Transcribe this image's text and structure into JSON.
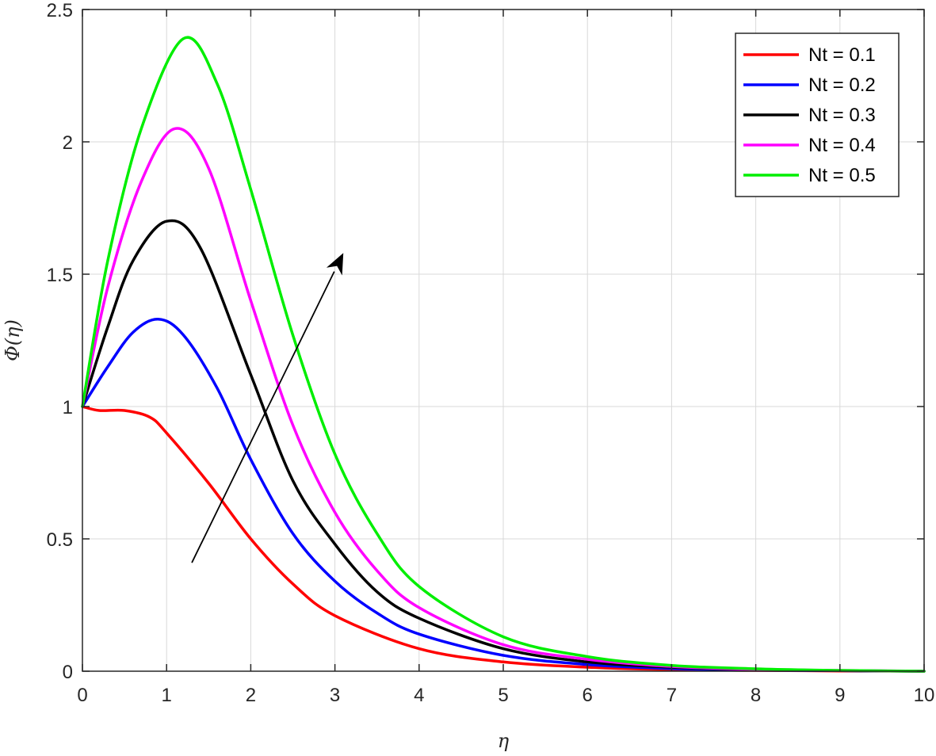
{
  "chart_data": {
    "type": "line",
    "xlabel": "η",
    "ylabel": "Φ(η)",
    "xlim": [
      0,
      10
    ],
    "ylim": [
      0,
      2.5
    ],
    "xticks": [
      "0",
      "1",
      "2",
      "3",
      "4",
      "5",
      "6",
      "7",
      "8",
      "9",
      "10"
    ],
    "yticks": [
      "0",
      "0.5",
      "1",
      "1.5",
      "2",
      "2.5"
    ],
    "grid": true,
    "legend_position": "top-right",
    "annotation": {
      "type": "arrow",
      "from": [
        1.3,
        0.41
      ],
      "to": [
        3.1,
        1.58
      ]
    },
    "series": [
      {
        "name": "Nt = 0.1",
        "color": "#ff0000",
        "x": [
          0,
          0.2,
          0.5,
          0.8,
          1.0,
          1.5,
          2.0,
          2.5,
          3.0,
          4.0,
          5.0,
          6.0,
          7.0,
          8.0,
          9.0,
          10.0
        ],
        "y": [
          1.0,
          0.985,
          0.985,
          0.96,
          0.9,
          0.71,
          0.5,
          0.33,
          0.21,
          0.085,
          0.035,
          0.015,
          0.006,
          0.003,
          0.001,
          0.0
        ]
      },
      {
        "name": "Nt = 0.2",
        "color": "#0000ff",
        "x": [
          0,
          0.3,
          0.6,
          0.9,
          1.2,
          1.6,
          2.0,
          2.5,
          3.0,
          3.5,
          4.0,
          5.0,
          6.0,
          7.0,
          8.0,
          9.0,
          10.0
        ],
        "y": [
          1.0,
          1.15,
          1.28,
          1.33,
          1.27,
          1.07,
          0.8,
          0.52,
          0.34,
          0.22,
          0.14,
          0.06,
          0.025,
          0.01,
          0.004,
          0.002,
          0.0
        ]
      },
      {
        "name": "Nt = 0.3",
        "color": "#000000",
        "x": [
          0,
          0.3,
          0.6,
          1.0,
          1.4,
          2.0,
          2.5,
          3.0,
          3.5,
          4.0,
          5.0,
          6.0,
          7.0,
          8.0,
          9.0,
          10.0
        ],
        "y": [
          1.0,
          1.3,
          1.55,
          1.7,
          1.6,
          1.12,
          0.72,
          0.48,
          0.3,
          0.2,
          0.085,
          0.035,
          0.015,
          0.006,
          0.002,
          0.0
        ]
      },
      {
        "name": "Nt = 0.4",
        "color": "#ff00ff",
        "x": [
          0,
          0.3,
          0.7,
          1.1,
          1.5,
          2.0,
          2.5,
          3.0,
          3.5,
          4.0,
          5.0,
          6.0,
          7.0,
          8.0,
          9.0,
          10.0
        ],
        "y": [
          1.0,
          1.45,
          1.85,
          2.05,
          1.9,
          1.4,
          0.93,
          0.6,
          0.38,
          0.24,
          0.1,
          0.045,
          0.018,
          0.007,
          0.003,
          0.0
        ]
      },
      {
        "name": "Nt = 0.5",
        "color": "#00ee00",
        "x": [
          0,
          0.3,
          0.7,
          1.2,
          1.6,
          2.0,
          2.5,
          3.0,
          3.5,
          4.0,
          5.0,
          6.0,
          7.0,
          8.0,
          9.0,
          10.0
        ],
        "y": [
          1.0,
          1.55,
          2.05,
          2.39,
          2.22,
          1.82,
          1.27,
          0.82,
          0.52,
          0.32,
          0.13,
          0.055,
          0.022,
          0.009,
          0.003,
          0.0
        ]
      }
    ]
  }
}
